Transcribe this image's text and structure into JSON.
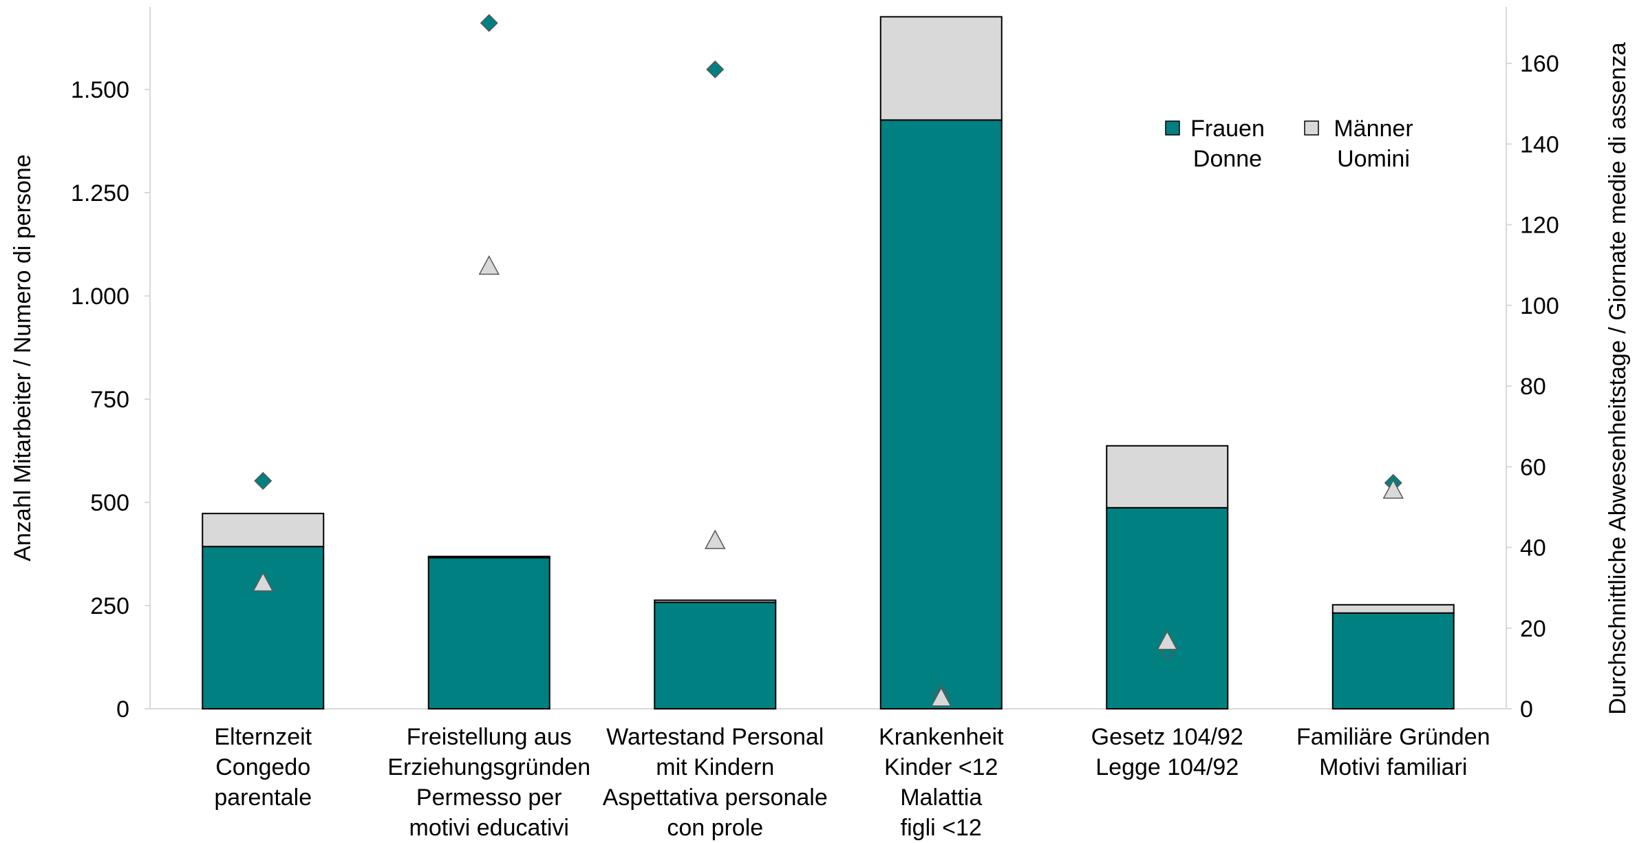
{
  "chart_data": {
    "type": "bar",
    "stacked": true,
    "categories": [
      [
        "Elternzeit",
        "Congedo",
        "parentale"
      ],
      [
        "Freistellung aus",
        "Erziehungsgründen",
        "Permesso per",
        "motivi educativi"
      ],
      [
        "Wartestand Personal",
        "mit Kindern",
        "Aspettativa personale",
        "con prole"
      ],
      [
        "Krankenheit",
        "Kinder <12",
        "Malattia",
        "figli <12"
      ],
      [
        "Gesetz 104/92",
        "Legge 104/92"
      ],
      [
        "Familiäre Gründen",
        "Motivi familiari"
      ]
    ],
    "series": [
      {
        "name": [
          "Frauen",
          "Donne"
        ],
        "color": "#008080",
        "values": [
          393,
          366,
          258,
          1426,
          487,
          232
        ]
      },
      {
        "name": [
          "Männer",
          "Uomini"
        ],
        "color": "#d9d9d9",
        "values": [
          80,
          3,
          5,
          250,
          150,
          20
        ]
      }
    ],
    "points": [
      {
        "series": "Frauen",
        "marker": "diamond",
        "color": "#008080",
        "values": [
          56.5,
          170,
          158.5,
          3.5,
          14.5,
          56
        ]
      },
      {
        "series": "Männer",
        "marker": "triangle",
        "color": "#d9d9d9",
        "values": [
          31,
          109.5,
          41.5,
          2.5,
          16.5,
          54
        ]
      }
    ],
    "y_left": {
      "label": "Anzahl Mitarbeiter / Numero di persone",
      "min": 0,
      "max": 1700,
      "ticks": [
        0,
        250,
        500,
        750,
        1000,
        1250,
        1500
      ],
      "tick_labels": [
        "0",
        "250",
        "500",
        "750",
        "1.000",
        "1.250",
        "1.500"
      ]
    },
    "y_right": {
      "label": "Durchschnittliche Abwesenheitstage / Giornate medie di assenza",
      "min": 0,
      "max": 174,
      "ticks": [
        0,
        20,
        40,
        60,
        80,
        100,
        120,
        140,
        160
      ],
      "tick_labels": [
        "0",
        "20",
        "40",
        "60",
        "80",
        "100",
        "120",
        "140",
        "160"
      ]
    },
    "legend_position": "top-right",
    "grid": false
  }
}
